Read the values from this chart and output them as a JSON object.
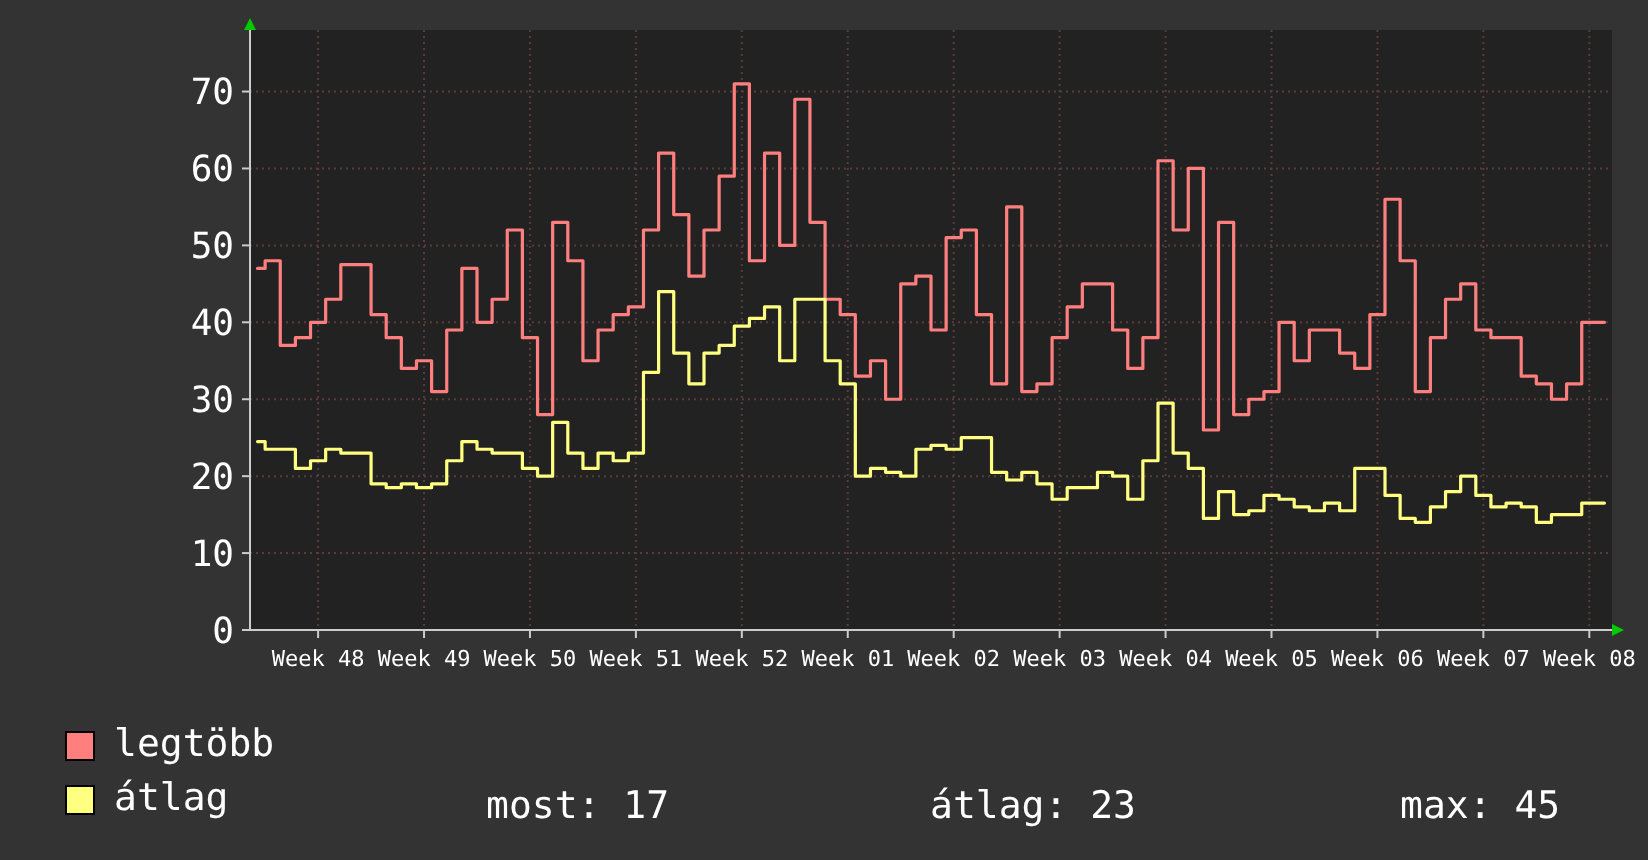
{
  "chart_data": {
    "type": "step",
    "ylim": [
      0,
      78
    ],
    "categories": [
      null,
      null,
      null,
      null,
      "Week 48",
      null,
      null,
      null,
      null,
      null,
      null,
      "Week 49",
      null,
      null,
      null,
      null,
      null,
      null,
      "Week 50",
      null,
      null,
      null,
      null,
      null,
      null,
      "Week 51",
      null,
      null,
      null,
      null,
      null,
      null,
      "Week 52",
      null,
      null,
      null,
      null,
      null,
      null,
      "Week 01",
      null,
      null,
      null,
      null,
      null,
      null,
      "Week 02",
      null,
      null,
      null,
      null,
      null,
      null,
      "Week 03",
      null,
      null,
      null,
      null,
      null,
      null,
      "Week 04",
      null,
      null,
      null,
      null,
      null,
      null,
      "Week 05",
      null,
      null,
      null,
      null,
      null,
      null,
      "Week 06",
      null,
      null,
      null,
      null,
      null,
      null,
      "Week 07",
      null,
      null,
      null,
      null,
      null,
      null,
      "Week 08",
      null
    ],
    "yticks": [
      0,
      10,
      20,
      30,
      40,
      50,
      60,
      70
    ],
    "grid": true,
    "legend": "bottom left",
    "series": [
      {
        "name": "legtöbb",
        "color": "#ff7f7f",
        "values": [
          47,
          48,
          37,
          38,
          40,
          43,
          47.5,
          47.5,
          41,
          38,
          34,
          35,
          31,
          39,
          47,
          40,
          43,
          52,
          38,
          28,
          53,
          48,
          35,
          39,
          41,
          42,
          52,
          62,
          54,
          46,
          52,
          59,
          71,
          48,
          62,
          50,
          69,
          53,
          43,
          41,
          33,
          35,
          30,
          45,
          46,
          39,
          51,
          52,
          41,
          32,
          55,
          31,
          32,
          38,
          42,
          45,
          45,
          39,
          34,
          38,
          61,
          52,
          60,
          26,
          53,
          28,
          30,
          31,
          40,
          35,
          39,
          39,
          36,
          34,
          41,
          56,
          48,
          31,
          38,
          43,
          45,
          39,
          38,
          38,
          33,
          32,
          30,
          32,
          40,
          40
        ]
      },
      {
        "name": "átlag",
        "color": "#ffff80",
        "values": [
          24.5,
          23.5,
          23.5,
          21,
          22,
          23.5,
          23,
          23,
          19,
          18.5,
          19,
          18.5,
          19,
          22,
          24.5,
          23.5,
          23,
          23,
          21,
          20,
          27,
          23,
          21,
          23,
          22,
          23,
          33.5,
          44,
          36,
          32,
          36,
          37,
          39.5,
          40.5,
          42,
          35,
          43,
          43,
          35,
          32,
          20,
          21,
          20.5,
          20,
          23.5,
          24,
          23.5,
          25,
          25,
          20.5,
          19.5,
          20.5,
          19,
          17,
          18.5,
          18.5,
          20.5,
          20,
          17,
          22,
          29.5,
          23,
          21,
          14.5,
          18,
          15,
          15.5,
          17.5,
          17,
          16,
          15.5,
          16.5,
          15.5,
          21,
          21,
          17.5,
          14.5,
          14,
          16,
          18,
          20,
          17.5,
          16,
          16.5,
          16,
          14,
          15,
          15,
          16.5,
          16.5
        ]
      }
    ],
    "annotations": [
      "most: 17",
      "átlag: 23",
      "max: 45"
    ]
  }
}
